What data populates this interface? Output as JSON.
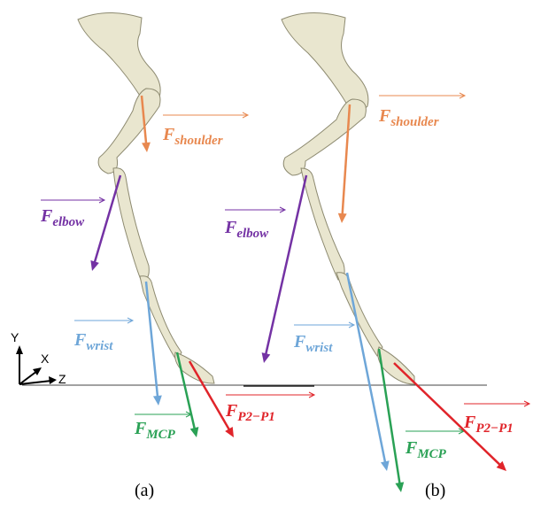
{
  "panels": [
    {
      "label": "(a)",
      "forces": [
        {
          "symbol": "F",
          "subscript": "shoulder"
        },
        {
          "symbol": "F",
          "subscript": "elbow"
        },
        {
          "symbol": "F",
          "subscript": "wrist"
        },
        {
          "symbol": "F",
          "subscript": "MCP"
        },
        {
          "symbol": "F",
          "subscript": "P2−P1"
        }
      ]
    },
    {
      "label": "(b)",
      "forces": [
        {
          "symbol": "F",
          "subscript": "shoulder"
        },
        {
          "symbol": "F",
          "subscript": "elbow"
        },
        {
          "symbol": "F",
          "subscript": "wrist"
        },
        {
          "symbol": "F",
          "subscript": "MCP"
        },
        {
          "symbol": "F",
          "subscript": "P2−P1"
        }
      ]
    }
  ],
  "axes": {
    "y": "Y",
    "x": "X",
    "z": "Z"
  }
}
